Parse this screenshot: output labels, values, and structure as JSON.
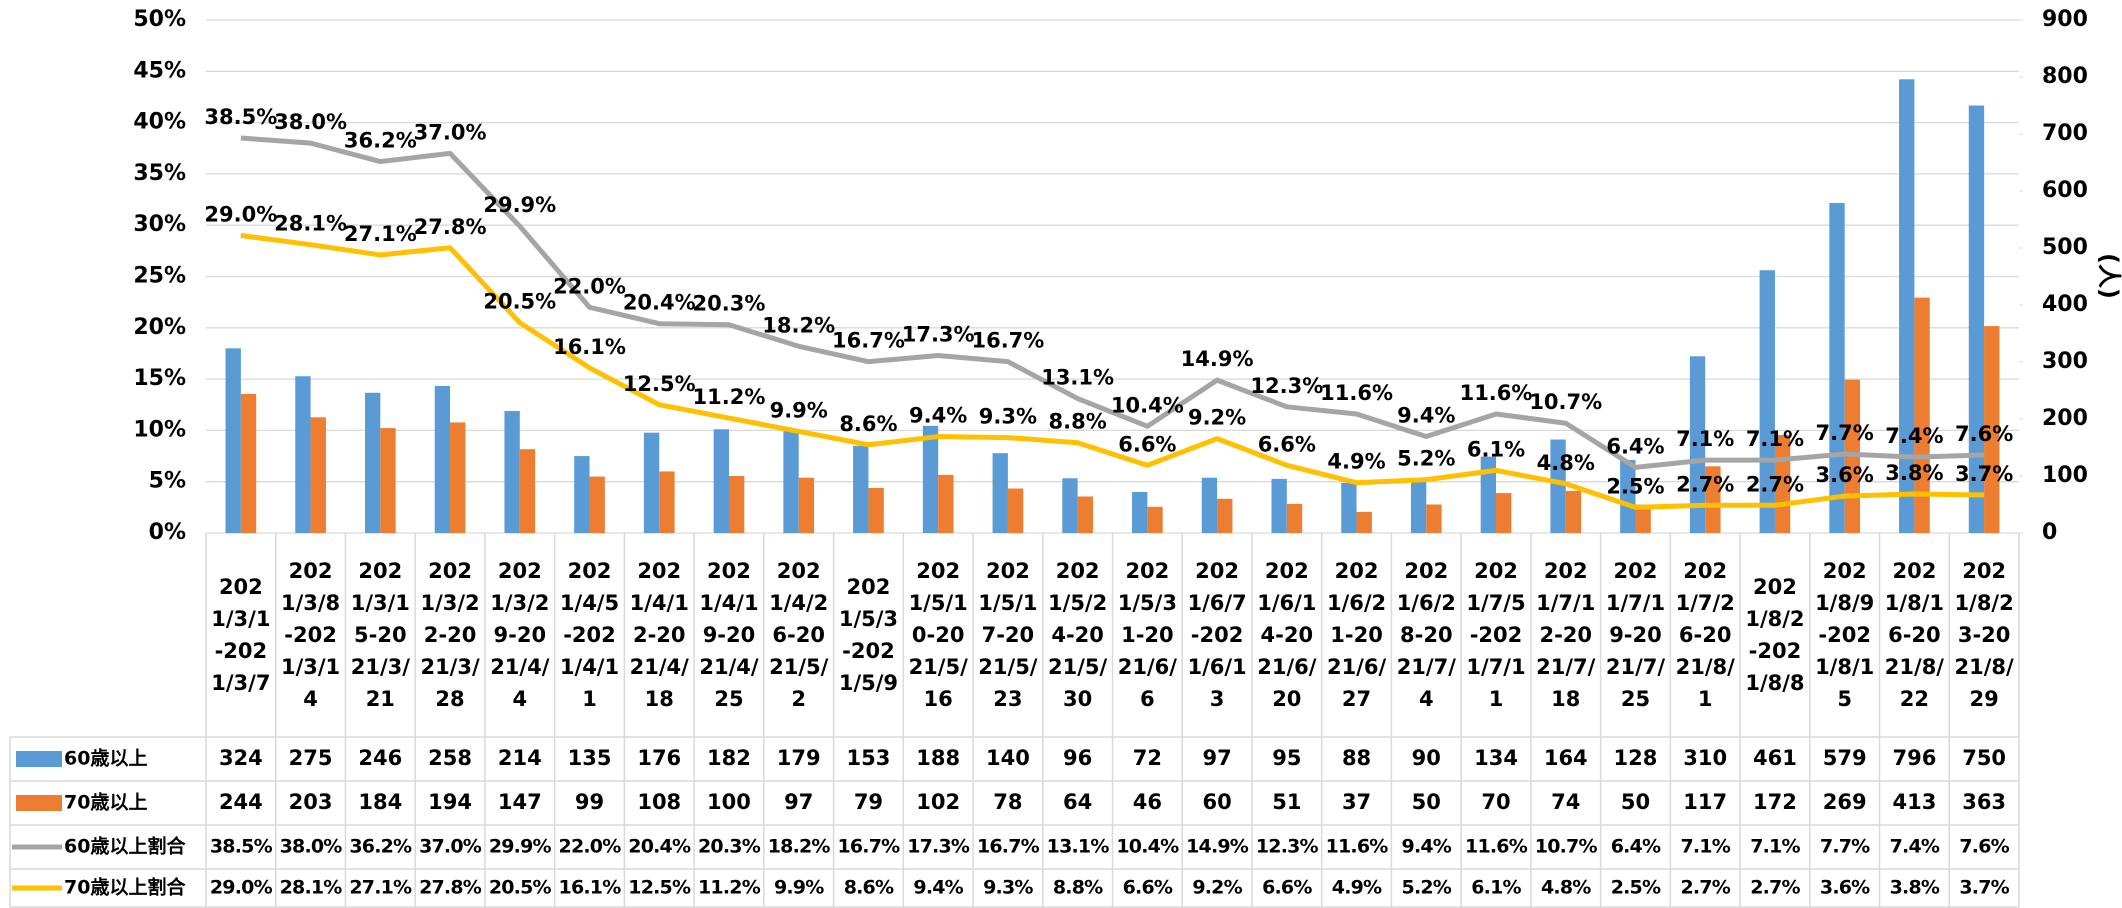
{
  "chart_data": {
    "type": "bar-line",
    "y2_label": "(人)",
    "categories": [
      "2021/3/1-2021/3/7",
      "2021/3/8-2021/3/14",
      "2021/3/15-2021/3/21",
      "2021/3/22-2021/3/28",
      "2021/3/29-2021/4/4",
      "2021/4/5-2021/4/11",
      "2021/4/12-2021/4/18",
      "2021/4/19-2021/4/25",
      "2021/4/26-2021/5/2",
      "2021/5/3-2021/5/9",
      "2021/5/10-2021/5/16",
      "2021/5/17-2021/5/23",
      "2021/5/24-2021/5/30",
      "2021/5/31-2021/6/6",
      "2021/6/7-2021/6/13",
      "2021/6/14-2021/6/20",
      "2021/6/21-2021/6/27",
      "2021/6/28-2021/7/4",
      "2021/7/5-2021/7/11",
      "2021/7/12-2021/7/18",
      "2021/7/19-2021/7/25",
      "2021/7/26-2021/8/1",
      "2021/8/2-2021/8/8",
      "2021/8/9-2021/8/15",
      "2021/8/16-2021/8/22",
      "2021/8/23-2021/8/29"
    ],
    "series": [
      {
        "name": "60歳以上",
        "type": "bar",
        "axis": "y2",
        "color": "#5b9bd5",
        "values": [
          324,
          275,
          246,
          258,
          214,
          135,
          176,
          182,
          179,
          153,
          188,
          140,
          96,
          72,
          97,
          95,
          88,
          90,
          134,
          164,
          128,
          310,
          461,
          579,
          796,
          750
        ]
      },
      {
        "name": "70歳以上",
        "type": "bar",
        "axis": "y2",
        "color": "#ed7d31",
        "values": [
          244,
          203,
          184,
          194,
          147,
          99,
          108,
          100,
          97,
          79,
          102,
          78,
          64,
          46,
          60,
          51,
          37,
          50,
          70,
          74,
          50,
          117,
          172,
          269,
          413,
          363
        ]
      },
      {
        "name": "60歳以上割合",
        "type": "line",
        "color": "#a5a5a5",
        "values": [
          38.5,
          38.0,
          36.2,
          37.0,
          29.9,
          22.0,
          20.4,
          20.3,
          18.2,
          16.7,
          17.3,
          16.7,
          13.1,
          10.4,
          14.9,
          12.3,
          11.6,
          9.4,
          11.6,
          10.7,
          6.4,
          7.1,
          7.1,
          7.7,
          7.4,
          7.6
        ],
        "value_labels": [
          "38.5%",
          "38.0%",
          "36.2%",
          "37.0%",
          "29.9%",
          "22.0%",
          "20.4%",
          "20.3%",
          "18.2%",
          "16.7%",
          "17.3%",
          "16.7%",
          "13.1%",
          "10.4%",
          "14.9%",
          "12.3%",
          "11.6%",
          "9.4%",
          "11.6%",
          "10.7%",
          "6.4%",
          "7.1%",
          "7.1%",
          "7.7%",
          "7.4%",
          "7.6%"
        ]
      },
      {
        "name": "70歳以上割合",
        "type": "line",
        "color": "#ffc000",
        "values": [
          29.0,
          28.1,
          27.1,
          27.8,
          20.5,
          16.1,
          12.5,
          11.2,
          9.9,
          8.6,
          9.4,
          9.3,
          8.8,
          6.6,
          9.2,
          6.6,
          4.9,
          5.2,
          6.1,
          4.8,
          2.5,
          2.7,
          2.7,
          3.6,
          3.8,
          3.7
        ],
        "value_labels": [
          "29.0%",
          "28.1%",
          "27.1%",
          "27.8%",
          "20.5%",
          "16.1%",
          "12.5%",
          "11.2%",
          "9.9%",
          "8.6%",
          "9.4%",
          "9.3%",
          "8.8%",
          "6.6%",
          "9.2%",
          "6.6%",
          "4.9%",
          "5.2%",
          "6.1%",
          "4.8%",
          "2.5%",
          "2.7%",
          "2.7%",
          "3.6%",
          "3.8%",
          "3.7%"
        ]
      }
    ],
    "ylim": [
      0,
      50
    ],
    "yticks": [
      {
        "value": 0,
        "label": "0%"
      },
      {
        "value": 5,
        "label": "5%"
      },
      {
        "value": 10,
        "label": "10%"
      },
      {
        "value": 15,
        "label": "15%"
      },
      {
        "value": 20,
        "label": "20%"
      },
      {
        "value": 25,
        "label": "25%"
      },
      {
        "value": 30,
        "label": "30%"
      },
      {
        "value": 35,
        "label": "35%"
      },
      {
        "value": 40,
        "label": "40%"
      },
      {
        "value": 45,
        "label": "45%"
      },
      {
        "value": 50,
        "label": "50%"
      }
    ],
    "y2lim": [
      0,
      900
    ],
    "y2ticks": [
      0,
      100,
      200,
      300,
      400,
      500,
      600,
      700,
      800,
      900
    ],
    "grid": true
  }
}
